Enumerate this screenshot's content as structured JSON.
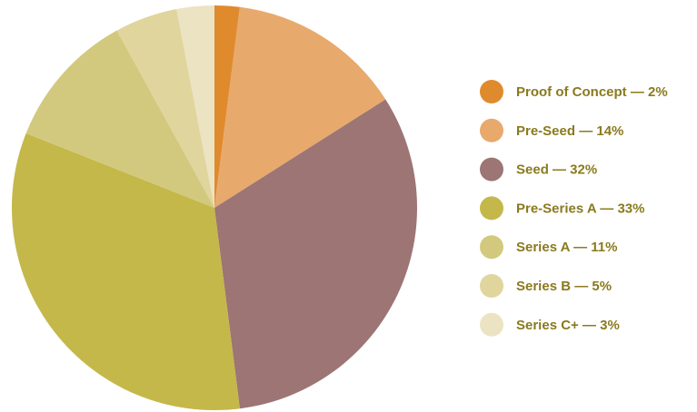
{
  "chart_data": {
    "type": "pie",
    "categories": [
      "Proof of Concept — 2%",
      "Pre-Seed — 14%",
      "Seed — 32%",
      "Pre-Series A — 33%",
      "Series A — 11%",
      "Series B — 5%",
      "Series C+ — 3%"
    ],
    "values": [
      2,
      14,
      32,
      33,
      11,
      5,
      3
    ],
    "colors": [
      "#e08a2e",
      "#e8a96c",
      "#9c7574",
      "#c4b84a",
      "#d3c97e",
      "#e0d59d",
      "#ebe3c2"
    ],
    "legend": "right"
  }
}
